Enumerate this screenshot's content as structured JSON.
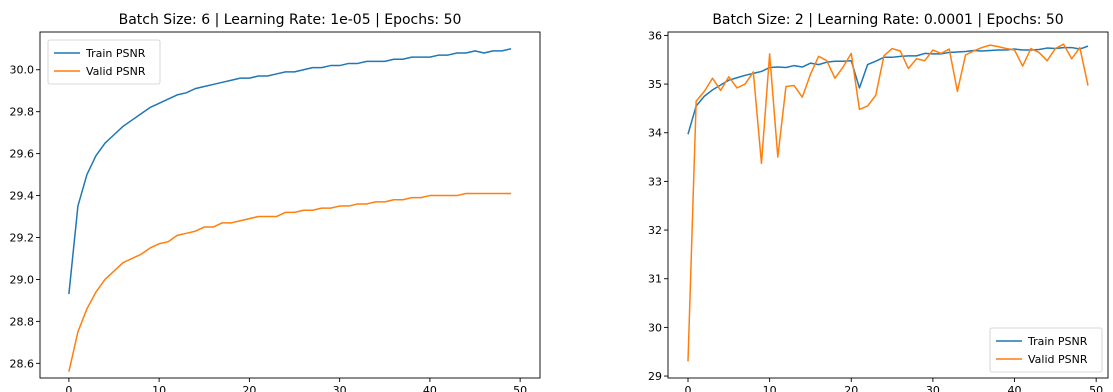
{
  "chart_data": [
    {
      "type": "line",
      "title": "Batch Size: 6 | Learning Rate: 1e-05 | Epochs: 50",
      "xlabel": "",
      "ylabel": "",
      "xlim": [
        -3.2,
        52.2
      ],
      "ylim": [
        28.53,
        30.18
      ],
      "xticks": [
        0,
        10,
        20,
        30,
        40,
        50
      ],
      "yticks": [
        28.6,
        28.8,
        29.0,
        29.2,
        29.4,
        29.6,
        29.8,
        30.0
      ],
      "ytick_labels": [
        "28.6",
        "28.8",
        "29.0",
        "29.2",
        "29.4",
        "29.6",
        "29.8",
        "30.0"
      ],
      "legend": "top-left",
      "grid": false,
      "x": [
        0,
        1,
        2,
        3,
        4,
        5,
        6,
        7,
        8,
        9,
        10,
        11,
        12,
        13,
        14,
        15,
        16,
        17,
        18,
        19,
        20,
        21,
        22,
        23,
        24,
        25,
        26,
        27,
        28,
        29,
        30,
        31,
        32,
        33,
        34,
        35,
        36,
        37,
        38,
        39,
        40,
        41,
        42,
        43,
        44,
        45,
        46,
        47,
        48,
        49
      ],
      "series": [
        {
          "name": "Train PSNR",
          "color": "#1f77b4",
          "values": [
            28.93,
            29.35,
            29.5,
            29.59,
            29.65,
            29.69,
            29.73,
            29.76,
            29.79,
            29.82,
            29.84,
            29.86,
            29.88,
            29.89,
            29.91,
            29.92,
            29.93,
            29.94,
            29.95,
            29.96,
            29.96,
            29.97,
            29.97,
            29.98,
            29.99,
            29.99,
            30.0,
            30.01,
            30.01,
            30.02,
            30.02,
            30.03,
            30.03,
            30.04,
            30.04,
            30.04,
            30.05,
            30.05,
            30.06,
            30.06,
            30.06,
            30.07,
            30.07,
            30.08,
            30.08,
            30.09,
            30.08,
            30.09,
            30.09,
            30.1
          ]
        },
        {
          "name": "Valid PSNR",
          "color": "#ff7f0e",
          "values": [
            28.56,
            28.75,
            28.86,
            28.94,
            29.0,
            29.04,
            29.08,
            29.1,
            29.12,
            29.15,
            29.17,
            29.18,
            29.21,
            29.22,
            29.23,
            29.25,
            29.25,
            29.27,
            29.27,
            29.28,
            29.29,
            29.3,
            29.3,
            29.3,
            29.32,
            29.32,
            29.33,
            29.33,
            29.34,
            29.34,
            29.35,
            29.35,
            29.36,
            29.36,
            29.37,
            29.37,
            29.38,
            29.38,
            29.39,
            29.39,
            29.4,
            29.4,
            29.4,
            29.4,
            29.41,
            29.41,
            29.41,
            29.41,
            29.41,
            29.41
          ]
        }
      ]
    },
    {
      "type": "line",
      "title": "Batch Size: 2 | Learning Rate: 0.0001 | Epochs: 50",
      "xlabel": "",
      "ylabel": "",
      "xlim": [
        -2.45,
        51.45
      ],
      "ylim": [
        28.96,
        36.07
      ],
      "xticks": [
        0,
        10,
        20,
        30,
        40,
        50
      ],
      "yticks": [
        29,
        30,
        31,
        32,
        33,
        34,
        35,
        36
      ],
      "ytick_labels": [
        "29",
        "30",
        "31",
        "32",
        "33",
        "34",
        "35",
        "36"
      ],
      "legend": "bottom-right",
      "grid": false,
      "x": [
        0,
        1,
        2,
        3,
        4,
        5,
        6,
        7,
        8,
        9,
        10,
        11,
        12,
        13,
        14,
        15,
        16,
        17,
        18,
        19,
        20,
        21,
        22,
        23,
        24,
        25,
        26,
        27,
        28,
        29,
        30,
        31,
        32,
        33,
        34,
        35,
        36,
        37,
        38,
        39,
        40,
        41,
        42,
        43,
        44,
        45,
        46,
        47,
        48,
        49
      ],
      "series": [
        {
          "name": "Train PSNR",
          "color": "#1f77b4",
          "values": [
            33.97,
            34.55,
            34.75,
            34.88,
            34.98,
            35.08,
            35.13,
            35.18,
            35.22,
            35.26,
            35.34,
            35.35,
            35.34,
            35.38,
            35.35,
            35.43,
            35.4,
            35.45,
            35.47,
            35.47,
            35.48,
            34.92,
            35.4,
            35.47,
            35.55,
            35.55,
            35.57,
            35.58,
            35.58,
            35.63,
            35.62,
            35.62,
            35.65,
            35.66,
            35.67,
            35.69,
            35.68,
            35.69,
            35.7,
            35.7,
            35.72,
            35.7,
            35.7,
            35.71,
            35.74,
            35.73,
            35.75,
            35.75,
            35.72,
            35.78
          ]
        },
        {
          "name": "Valid PSNR",
          "color": "#ff7f0e",
          "values": [
            29.3,
            34.65,
            34.85,
            35.12,
            34.87,
            35.15,
            34.92,
            35.0,
            35.25,
            33.37,
            35.62,
            33.5,
            34.95,
            34.97,
            34.73,
            35.2,
            35.57,
            35.48,
            35.12,
            35.35,
            35.63,
            34.48,
            34.55,
            34.77,
            35.58,
            35.73,
            35.68,
            35.32,
            35.52,
            35.48,
            35.7,
            35.63,
            35.72,
            34.85,
            35.6,
            35.68,
            35.75,
            35.8,
            35.77,
            35.73,
            35.7,
            35.37,
            35.73,
            35.65,
            35.48,
            35.73,
            35.82,
            35.52,
            35.75,
            34.97
          ]
        }
      ]
    }
  ]
}
